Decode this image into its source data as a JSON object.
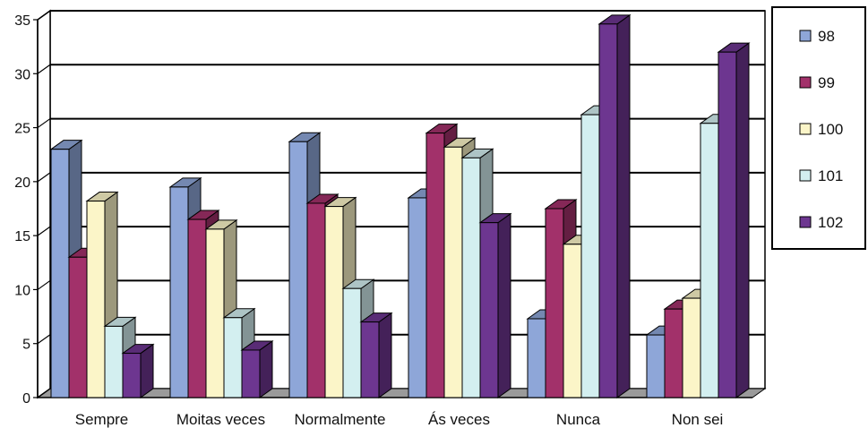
{
  "chart_data": {
    "type": "bar",
    "style": "3d-clustered-column",
    "categories": [
      "Sempre",
      "Moitas veces",
      "Normalmente",
      "Ás veces",
      "Nunca",
      "Non sei"
    ],
    "series": [
      {
        "name": "98",
        "color": "#8ea6d8",
        "values": [
          23,
          19.5,
          23.7,
          18.5,
          7.3,
          5.8
        ]
      },
      {
        "name": "99",
        "color": "#a2316a",
        "values": [
          13,
          16.5,
          18,
          24.5,
          17.5,
          8.2
        ]
      },
      {
        "name": "100",
        "color": "#fbf5c8",
        "values": [
          18.2,
          15.6,
          17.7,
          23.2,
          14.2,
          9.2
        ]
      },
      {
        "name": "101",
        "color": "#d3eff0",
        "values": [
          6.6,
          7.4,
          10.1,
          22.2,
          26.2,
          25.4
        ]
      },
      {
        "name": "102",
        "color": "#6d3690",
        "values": [
          4.1,
          4.4,
          7,
          16.2,
          34.6,
          32
        ]
      }
    ],
    "ylim": [
      0,
      35
    ],
    "yticks": [
      "0",
      "5",
      "10",
      "15",
      "20",
      "25",
      "30",
      "35"
    ],
    "grid": true,
    "legend_position": "right",
    "title": "",
    "xlabel": "",
    "ylabel": ""
  }
}
